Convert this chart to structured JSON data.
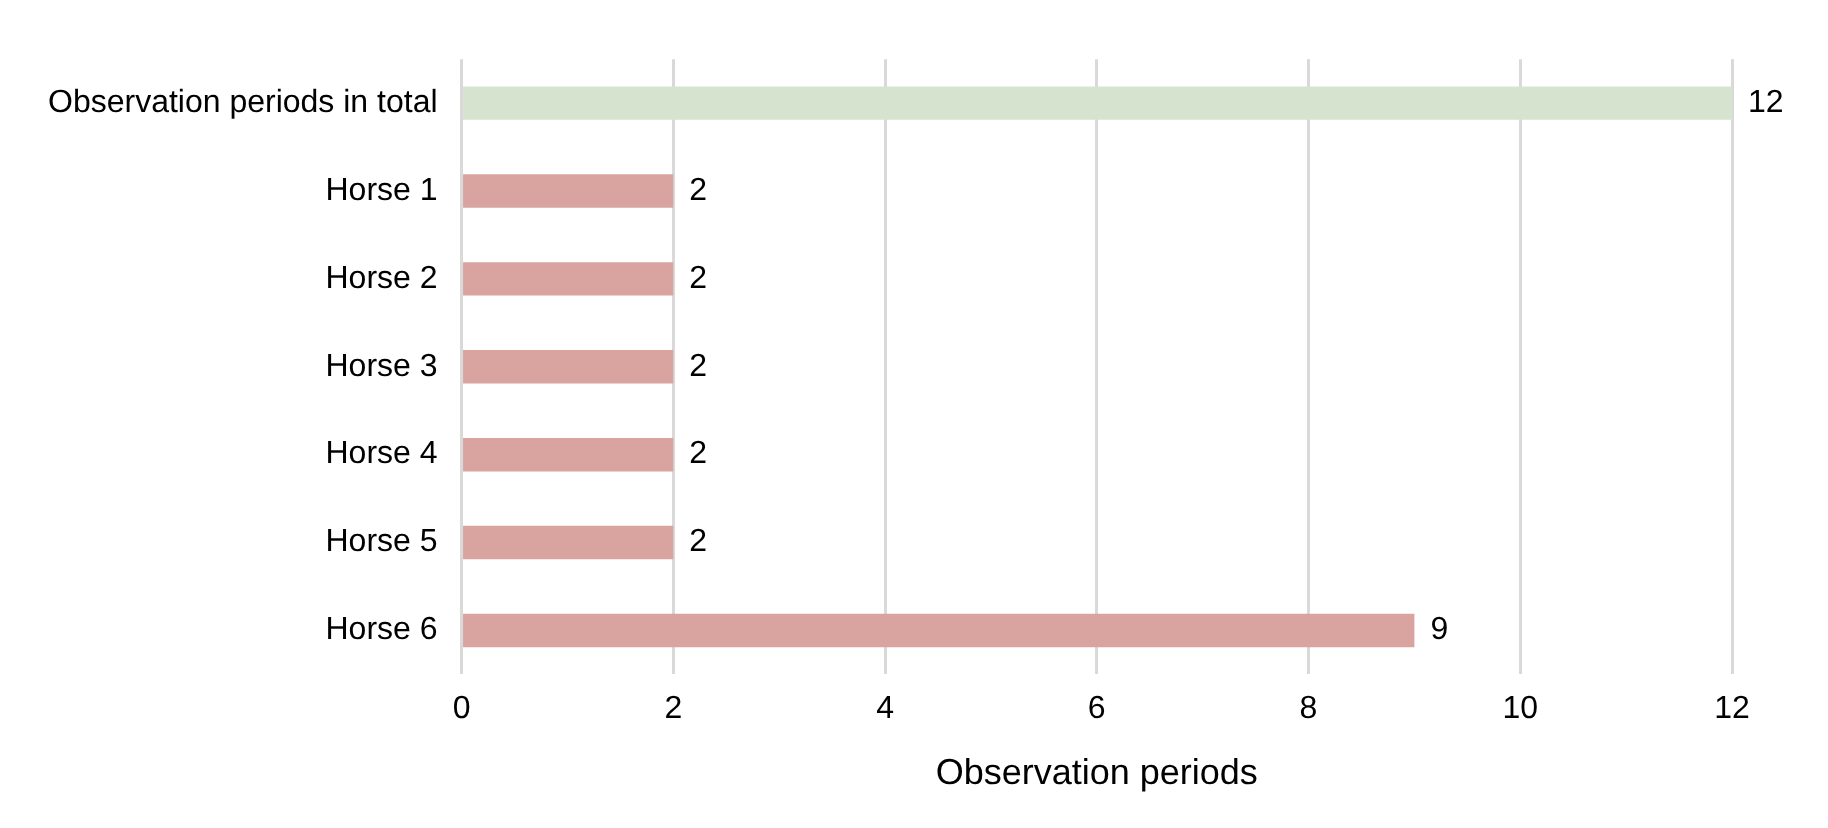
{
  "chart_data": {
    "type": "bar",
    "orientation": "horizontal",
    "xlabel": "Observation periods",
    "categories": [
      "Observation periods in total",
      "Horse 1",
      "Horse 2",
      "Horse 3",
      "Horse 4",
      "Horse 5",
      "Horse 6"
    ],
    "values": [
      12,
      2,
      2,
      2,
      2,
      2,
      9
    ],
    "colors": [
      "#d5e3cf",
      "#d9a3a0",
      "#d9a3a0",
      "#d9a3a0",
      "#d9a3a0",
      "#d9a3a0",
      "#d9a3a0"
    ],
    "xlim": [
      0,
      12
    ],
    "xticks": [
      0,
      2,
      4,
      6,
      8,
      10,
      12
    ],
    "grid": "x",
    "data_labels": true,
    "legend": false
  }
}
